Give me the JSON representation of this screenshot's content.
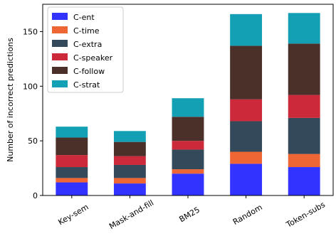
{
  "chart_data": {
    "type": "bar",
    "stacked": true,
    "ylabel": "Number of incorrect predictions",
    "xlabel": "",
    "ylim": [
      0,
      175
    ],
    "yticks": [
      0,
      50,
      100,
      150
    ],
    "categories": [
      "Key-sem",
      "Mask-and-fill",
      "BM25",
      "Random",
      "Token-subs"
    ],
    "legend_position": "top-left",
    "grid": false,
    "series": [
      {
        "name": "C-ent",
        "color": "#3333ff",
        "values": [
          12,
          11,
          20,
          29,
          26
        ]
      },
      {
        "name": "C-time",
        "color": "#ee6633",
        "values": [
          4,
          5,
          4,
          11,
          12
        ]
      },
      {
        "name": "C-extra",
        "color": "#344a5b",
        "values": [
          10,
          12,
          18,
          28,
          33
        ]
      },
      {
        "name": "C-speaker",
        "color": "#cc2a3a",
        "values": [
          11,
          8,
          8,
          20,
          21
        ]
      },
      {
        "name": "C-follow",
        "color": "#4a3028",
        "values": [
          16,
          13,
          22,
          49,
          47
        ]
      },
      {
        "name": "C-strat",
        "color": "#14a0b4",
        "values": [
          10,
          10,
          17,
          29,
          28
        ]
      }
    ]
  }
}
